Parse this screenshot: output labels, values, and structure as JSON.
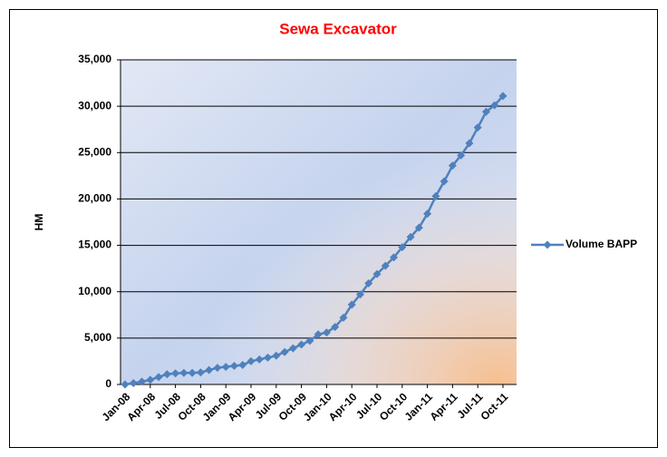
{
  "chart_data": {
    "type": "line",
    "title": "Sewa Excavator",
    "y_label": "HM",
    "categories": [
      "Jan-08",
      null,
      null,
      "Apr-08",
      null,
      null,
      "Jul-08",
      null,
      null,
      "Oct-08",
      null,
      null,
      "Jan-09",
      null,
      null,
      "Apr-09",
      null,
      null,
      "Jul-09",
      null,
      null,
      "Oct-09",
      null,
      null,
      "Jan-10",
      null,
      null,
      "Apr-10",
      null,
      null,
      "Jul-10",
      null,
      null,
      "Oct-10",
      null,
      null,
      "Jan-11",
      null,
      null,
      "Apr-11",
      null,
      null,
      "Jul-11",
      null,
      null,
      "Oct-11"
    ],
    "series": [
      {
        "name": "Volume BAPP",
        "color": "#4f81bd",
        "values": [
          0,
          150,
          300,
          500,
          800,
          1100,
          1200,
          1250,
          1250,
          1300,
          1550,
          1800,
          1900,
          2000,
          2100,
          2500,
          2700,
          2900,
          3100,
          3500,
          3900,
          4300,
          4700,
          5400,
          5600,
          6200,
          7200,
          8600,
          9700,
          10900,
          11900,
          12800,
          13700,
          14800,
          15900,
          16900,
          18400,
          20300,
          21900,
          23600,
          24700,
          26000,
          27700,
          29400,
          30100,
          31100
        ]
      }
    ],
    "ylim": [
      0,
      35000
    ],
    "yticks": [
      0,
      {
        "value": 5000,
        "label": "5,000"
      },
      {
        "value": 10000,
        "label": "10,000"
      },
      {
        "value": 15000,
        "label": "15,000"
      },
      {
        "value": 20000,
        "label": "20,000"
      },
      {
        "value": 25000,
        "label": "25,000"
      },
      {
        "value": 30000,
        "label": "30,000"
      },
      {
        "value": 35000,
        "label": "35,000"
      }
    ],
    "grid": true,
    "legend": "right"
  }
}
